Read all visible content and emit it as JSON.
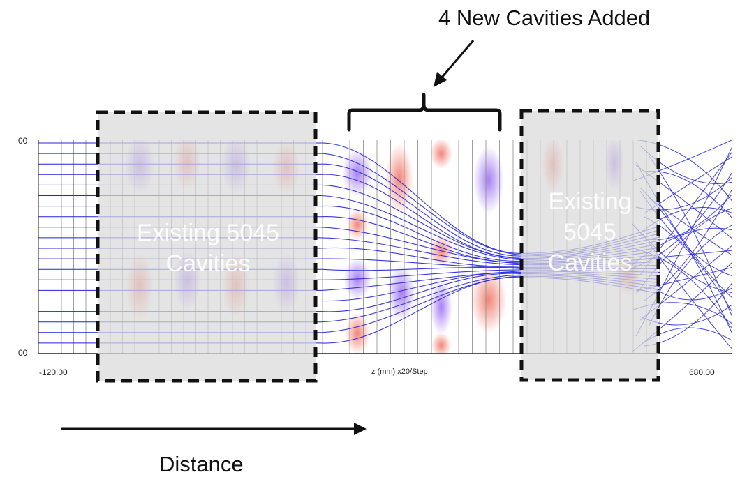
{
  "callout": {
    "text": "4 New Cavities Added"
  },
  "arrow_label": {
    "text": "Distance"
  },
  "plot": {
    "y_tick_top": "00",
    "y_tick_bottom": "00",
    "x_tick_min": "-120.00",
    "x_tick_max": "680.00",
    "x_axis_label": "z (mm) x20/Step"
  },
  "zones": {
    "left_label_lines": [
      "Existing 5045",
      "Cavities"
    ],
    "right_label_lines": [
      "Existing",
      "5045",
      "Cavities"
    ]
  },
  "colors": {
    "trajectory": "#2323e0",
    "grid": "#8a8a8a",
    "field_positive": "#f08070",
    "field_negative": "#a070f0",
    "zone_fill": "#d9d9d9",
    "dash": "#111111"
  }
}
